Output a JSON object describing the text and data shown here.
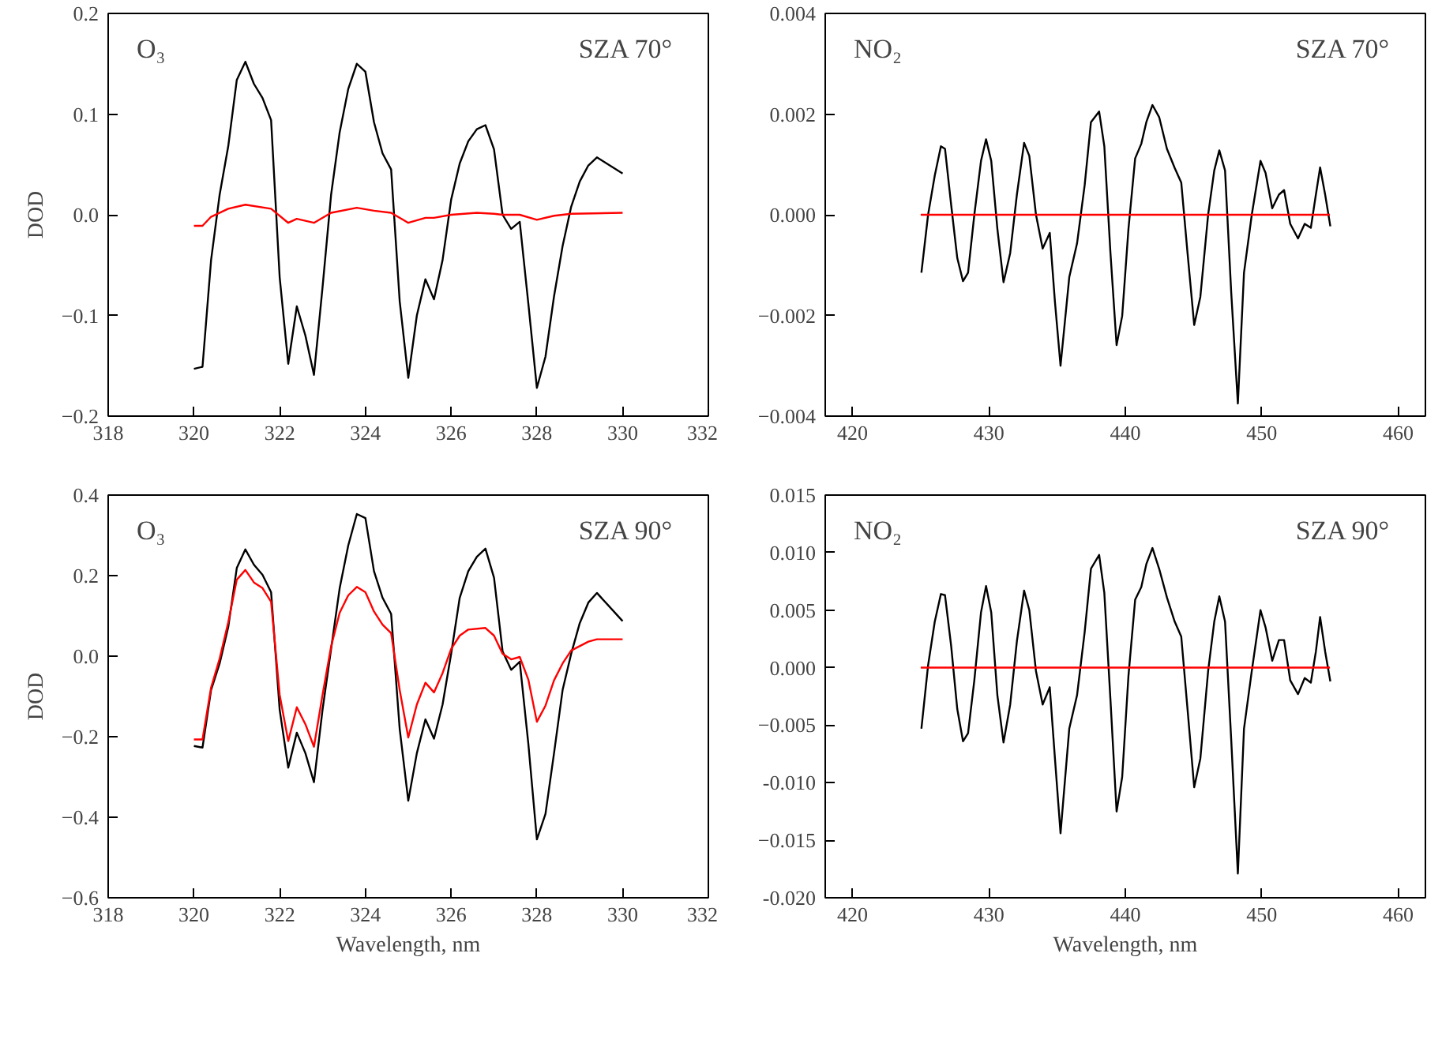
{
  "chart_data": [
    {
      "type": "line",
      "annotations": [
        "O₃",
        "SZA 70°"
      ],
      "ylabel": "DOD",
      "xlim": [
        318,
        332
      ],
      "xticks": [
        318,
        320,
        322,
        324,
        326,
        328,
        330,
        332
      ],
      "ylim": [
        -0.2,
        0.2
      ],
      "yticks": [
        -0.2,
        -0.1,
        {
          "value": 0,
          "label": "0.0"
        },
        0.1,
        0.2
      ],
      "grid": false,
      "series": [
        {
          "color": "#000000",
          "x": [
            320.0,
            320.2,
            320.4,
            320.6,
            320.8,
            321.0,
            321.2,
            321.4,
            321.6,
            321.8,
            322.0,
            322.2,
            322.4,
            322.6,
            322.8,
            323.0,
            323.2,
            323.4,
            323.6,
            323.8,
            324.0,
            324.2,
            324.4,
            324.6,
            324.8,
            325.0,
            325.2,
            325.4,
            325.6,
            325.8,
            326.0,
            326.2,
            326.4,
            326.6,
            326.8,
            327.0,
            327.2,
            327.4,
            327.6,
            327.8,
            328.0,
            328.2,
            328.4,
            328.6,
            328.8,
            329.0,
            329.2,
            329.4,
            330.0
          ],
          "values": [
            -0.153,
            -0.151,
            -0.045,
            0.02,
            0.068,
            0.134,
            0.152,
            0.13,
            0.116,
            0.094,
            -0.062,
            -0.148,
            -0.091,
            -0.12,
            -0.159,
            -0.072,
            0.02,
            0.082,
            0.125,
            0.15,
            0.142,
            0.092,
            0.061,
            0.045,
            -0.086,
            -0.162,
            -0.1,
            -0.064,
            -0.084,
            -0.045,
            0.015,
            0.051,
            0.073,
            0.085,
            0.089,
            0.065,
            0.0,
            -0.014,
            -0.007,
            -0.088,
            -0.172,
            -0.141,
            -0.081,
            -0.031,
            0.008,
            0.033,
            0.049,
            0.057,
            0.041
          ]
        },
        {
          "color": "#ff0000",
          "x": [
            320.0,
            320.2,
            320.4,
            320.8,
            321.2,
            321.8,
            322.2,
            322.4,
            322.8,
            323.2,
            323.8,
            324.2,
            324.6,
            325.0,
            325.4,
            325.6,
            326.0,
            326.6,
            327.0,
            327.2,
            327.6,
            328.0,
            328.4,
            328.8,
            330.0
          ],
          "values": [
            -0.011,
            -0.011,
            -0.002,
            0.006,
            0.01,
            0.006,
            -0.008,
            -0.004,
            -0.008,
            0.002,
            0.007,
            0.004,
            0.002,
            -0.008,
            -0.003,
            -0.003,
            0.0,
            0.002,
            0.001,
            0.0,
            0.0,
            -0.005,
            -0.001,
            0.001,
            0.002
          ]
        }
      ]
    },
    {
      "type": "line",
      "annotations": [
        "NO₂",
        "SZA 70°"
      ],
      "xlim": [
        418,
        462
      ],
      "xticks": [
        420,
        430,
        440,
        450,
        460
      ],
      "ylim": [
        -0.004,
        0.004
      ],
      "yticks": [
        -0.004,
        -0.002,
        {
          "value": 0,
          "label": "0.000"
        },
        0.002,
        0.004
      ],
      "grid": false,
      "series": [
        {
          "color": "#000000",
          "x": [
            425.05,
            425.54,
            426.03,
            426.48,
            426.78,
            427.23,
            427.68,
            428.1,
            428.47,
            428.93,
            429.42,
            429.79,
            430.17,
            430.62,
            431.07,
            431.56,
            432.05,
            432.58,
            432.96,
            433.45,
            433.94,
            434.46,
            434.84,
            435.25,
            435.89,
            436.46,
            437.02,
            437.48,
            438.08,
            438.46,
            438.91,
            439.36,
            439.77,
            440.23,
            440.72,
            441.17,
            441.54,
            441.99,
            442.48,
            443.05,
            443.62,
            444.1,
            444.56,
            445.05,
            445.5,
            446.07,
            446.52,
            446.89,
            447.31,
            447.76,
            448.25,
            448.7,
            449.27,
            449.91,
            450.28,
            450.77,
            451.26,
            451.64,
            452.09,
            452.66,
            453.15,
            453.6,
            453.97,
            454.28,
            454.65,
            455.03
          ],
          "values": [
            -0.00115,
            0.0,
            0.00078,
            0.00136,
            0.00131,
            0.0002,
            -0.00086,
            -0.00132,
            -0.00115,
            0.0,
            0.00107,
            0.0015,
            0.00107,
            -0.00028,
            -0.00134,
            -0.00076,
            0.0004,
            0.00143,
            0.00117,
            0.0,
            -0.00067,
            -0.00036,
            -0.00173,
            -0.003,
            -0.00124,
            -0.00057,
            0.00059,
            0.00184,
            0.00205,
            0.00136,
            -0.00076,
            -0.00259,
            -0.00201,
            -0.00028,
            0.00112,
            0.00141,
            0.00184,
            0.00218,
            0.00194,
            0.00131,
            0.00093,
            0.00064,
            -0.00076,
            -0.00219,
            -0.00163,
            0.0,
            0.00088,
            0.00128,
            0.00088,
            -0.00153,
            -0.00375,
            -0.00115,
            0.0,
            0.00107,
            0.00083,
            0.00013,
            0.0004,
            0.00049,
            -0.00018,
            -0.00047,
            -0.00018,
            -0.00026,
            0.0004,
            0.00094,
            0.0004,
            -0.00023
          ]
        },
        {
          "color": "#ff0000",
          "x": [
            425.0,
            440.0,
            455.0
          ],
          "values": [
            0.0,
            0.0,
            0.0
          ]
        }
      ]
    },
    {
      "type": "line",
      "annotations": [
        "O₃",
        "SZA 90°"
      ],
      "ylabel": "DOD",
      "xlabel": "Wavelength, nm",
      "xlim": [
        318,
        332
      ],
      "xticks": [
        318,
        320,
        322,
        324,
        326,
        328,
        330,
        332
      ],
      "ylim": [
        -0.6,
        0.4
      ],
      "yticks": [
        -0.6,
        -0.4,
        -0.2,
        {
          "value": 0,
          "label": "0.0"
        },
        0.2,
        0.4
      ],
      "grid": false,
      "series": [
        {
          "color": "#000000",
          "x": [
            320.0,
            320.2,
            320.4,
            320.6,
            320.8,
            321.0,
            321.2,
            321.4,
            321.6,
            321.8,
            322.0,
            322.2,
            322.4,
            322.6,
            322.8,
            323.0,
            323.2,
            323.4,
            323.6,
            323.8,
            324.0,
            324.2,
            324.4,
            324.6,
            324.8,
            325.0,
            325.2,
            325.4,
            325.6,
            325.8,
            326.0,
            326.2,
            326.4,
            326.6,
            326.8,
            327.0,
            327.2,
            327.4,
            327.6,
            327.8,
            328.0,
            328.2,
            328.4,
            328.6,
            328.8,
            329.0,
            329.2,
            329.4,
            330.0
          ],
          "values": [
            -0.223,
            -0.227,
            -0.084,
            -0.018,
            0.072,
            0.219,
            0.265,
            0.227,
            0.202,
            0.159,
            -0.133,
            -0.277,
            -0.19,
            -0.241,
            -0.313,
            -0.133,
            0.018,
            0.169,
            0.275,
            0.353,
            0.343,
            0.211,
            0.145,
            0.105,
            -0.181,
            -0.359,
            -0.241,
            -0.157,
            -0.205,
            -0.12,
            0.006,
            0.145,
            0.211,
            0.247,
            0.267,
            0.195,
            0.012,
            -0.034,
            -0.014,
            -0.217,
            -0.455,
            -0.392,
            -0.241,
            -0.084,
            0.006,
            0.082,
            0.133,
            0.157,
            0.087
          ]
        },
        {
          "color": "#ff0000",
          "x": [
            320.0,
            320.2,
            320.4,
            320.6,
            320.8,
            321.0,
            321.2,
            321.4,
            321.6,
            321.8,
            322.0,
            322.2,
            322.4,
            322.6,
            322.8,
            323.0,
            323.2,
            323.4,
            323.6,
            323.8,
            324.0,
            324.2,
            324.4,
            324.6,
            324.8,
            325.0,
            325.2,
            325.4,
            325.6,
            325.8,
            326.0,
            326.2,
            326.4,
            326.8,
            327.0,
            327.2,
            327.4,
            327.6,
            327.8,
            328.0,
            328.2,
            328.4,
            328.6,
            328.8,
            329.2,
            329.4,
            330.0
          ],
          "values": [
            -0.207,
            -0.207,
            -0.078,
            -0.006,
            0.084,
            0.19,
            0.214,
            0.183,
            0.169,
            0.135,
            -0.096,
            -0.211,
            -0.127,
            -0.169,
            -0.225,
            -0.096,
            0.024,
            0.108,
            0.151,
            0.172,
            0.159,
            0.111,
            0.078,
            0.057,
            -0.084,
            -0.202,
            -0.12,
            -0.066,
            -0.09,
            -0.042,
            0.018,
            0.051,
            0.066,
            0.07,
            0.051,
            0.006,
            -0.008,
            -0.002,
            -0.058,
            -0.163,
            -0.123,
            -0.06,
            -0.018,
            0.014,
            0.036,
            0.042,
            0.042
          ]
        }
      ]
    },
    {
      "type": "line",
      "annotations": [
        "NO₂",
        "SZA 90°"
      ],
      "xlabel": "Wavelength, nm",
      "xlim": [
        418,
        462
      ],
      "xticks": [
        420,
        430,
        440,
        450,
        460
      ],
      "ylim": [
        -0.02,
        0.015
      ],
      "yticks": [
        {
          "value": -0.02,
          "label": "-0.020"
        },
        -0.015,
        {
          "value": -0.01,
          "label": "-0.010"
        },
        -0.005,
        {
          "value": 0,
          "label": "0.000"
        },
        0.005,
        {
          "value": 0.01,
          "label": "0.010"
        },
        0.015
      ],
      "grid": false,
      "series": [
        {
          "color": "#000000",
          "x": [
            425.05,
            425.54,
            426.03,
            426.48,
            426.78,
            427.23,
            427.68,
            428.1,
            428.47,
            428.93,
            429.42,
            429.79,
            430.17,
            430.62,
            431.07,
            431.56,
            432.05,
            432.58,
            432.96,
            433.45,
            433.94,
            434.46,
            434.84,
            435.25,
            435.89,
            436.46,
            437.02,
            437.48,
            438.08,
            438.46,
            438.91,
            439.36,
            439.77,
            440.23,
            440.72,
            441.17,
            441.54,
            441.99,
            442.48,
            443.05,
            443.62,
            444.1,
            444.56,
            445.05,
            445.5,
            446.07,
            446.52,
            446.89,
            447.31,
            447.76,
            448.25,
            448.7,
            449.27,
            449.91,
            450.28,
            450.77,
            451.26,
            451.64,
            452.09,
            452.66,
            453.15,
            453.6,
            453.97,
            454.28,
            454.65,
            455.03
          ],
          "values": [
            -0.0053,
            0.0002,
            0.004,
            0.0064,
            0.0063,
            0.0019,
            -0.0036,
            -0.0064,
            -0.0057,
            -0.0011,
            0.0048,
            0.0071,
            0.0048,
            -0.0024,
            -0.0065,
            -0.0032,
            0.0023,
            0.0067,
            0.005,
            -0.0003,
            -0.0032,
            -0.0017,
            -0.0079,
            -0.0144,
            -0.0053,
            -0.0024,
            0.0031,
            0.0086,
            0.0098,
            0.0065,
            -0.0028,
            -0.0125,
            -0.0095,
            -0.0007,
            0.0059,
            0.007,
            0.009,
            0.0104,
            0.0086,
            0.0061,
            0.004,
            0.0027,
            -0.0036,
            -0.0104,
            -0.0079,
            -0.0003,
            0.004,
            0.0062,
            0.004,
            -0.0062,
            -0.0179,
            -0.0053,
            -0.0003,
            0.005,
            0.0035,
            0.0006,
            0.0024,
            0.0024,
            -0.0011,
            -0.0023,
            -0.0009,
            -0.0013,
            0.0014,
            0.0044,
            0.0014,
            -0.0012
          ]
        },
        {
          "color": "#ff0000",
          "x": [
            425.0,
            440.0,
            455.0
          ],
          "values": [
            0.0,
            0.0,
            0.0
          ]
        }
      ]
    }
  ]
}
